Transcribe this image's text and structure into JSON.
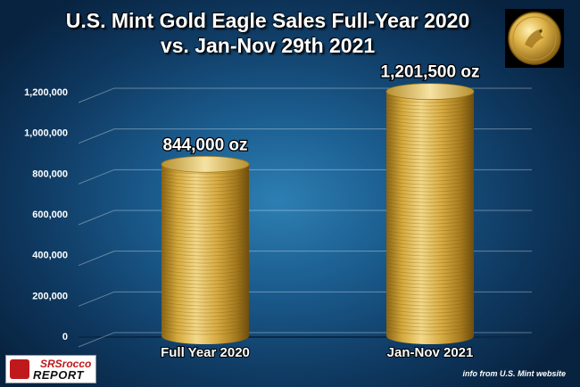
{
  "header": {
    "title_line1": "U.S. Mint Gold Eagle Sales Full-Year 2020",
    "title_line2": "vs. Jan-Nov 29th 2021"
  },
  "footer": {
    "logo_text_top": "SRSrocco",
    "logo_text_bottom": "REPORT",
    "source": "info from U.S. Mint website"
  },
  "colors": {
    "gold_light": "#f3d98a",
    "gold_mid": "#d4a93c",
    "gold_dark": "#8a6414",
    "label_text": "#ffffff"
  },
  "icons": [
    "gold-eagle-coin-icon",
    "srsrocco-logo-icon"
  ],
  "chart_data": {
    "type": "bar",
    "title": "U.S. Mint Gold Eagle Sales Full-Year 2020 vs. Jan-Nov 29th 2021",
    "categories": [
      "Full Year 2020",
      "Jan-Nov 2021"
    ],
    "values": [
      844000,
      1201500
    ],
    "data_labels": [
      "844,000 oz",
      "1,201,500 oz"
    ],
    "ylim": [
      0,
      1200000
    ],
    "yticks": [
      0,
      200000,
      400000,
      600000,
      800000,
      1000000,
      1200000
    ],
    "ytick_labels": [
      "0",
      "200,000",
      "400,000",
      "600,000",
      "800,000",
      "1,000,000",
      "1,200,000"
    ],
    "grid": true,
    "xlabel": "",
    "ylabel": ""
  }
}
